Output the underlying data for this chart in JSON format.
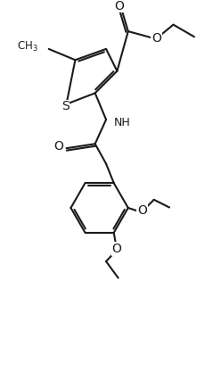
{
  "background_color": "#ffffff",
  "line_color": "#1a1a1a",
  "line_width": 1.5,
  "font_size": 9,
  "figsize": [
    2.48,
    4.26
  ],
  "dpi": 100,
  "xlim": [
    0,
    10
  ],
  "ylim": [
    0,
    17
  ]
}
